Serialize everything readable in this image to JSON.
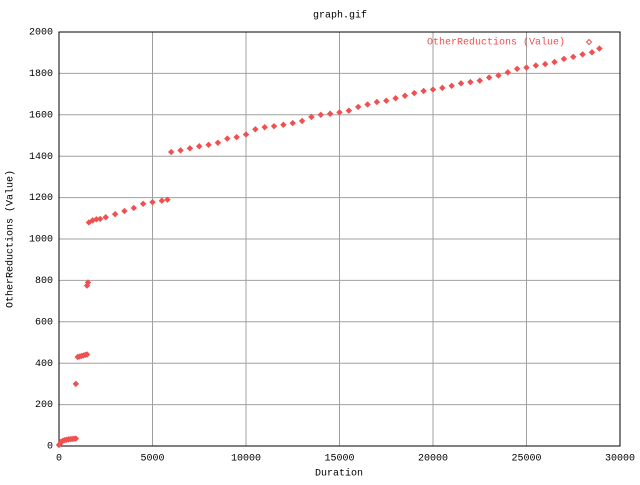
{
  "chart_data": {
    "type": "scatter",
    "title": "graph.gif",
    "x_label": "Duration",
    "y_label": "OtherReductions (Value)",
    "xlim": [
      0,
      30000
    ],
    "xticks": [
      0,
      5000,
      10000,
      15000,
      20000,
      25000,
      30000
    ],
    "ylim": [
      0,
      2000
    ],
    "yticks": [
      0,
      200,
      400,
      600,
      800,
      1000,
      1200,
      1400,
      1600,
      1800,
      2000
    ],
    "grid": true,
    "legend": "top-right",
    "x": [
      0,
      50,
      100,
      200,
      300,
      400,
      500,
      600,
      700,
      800,
      900,
      900,
      1000,
      1100,
      1200,
      1300,
      1400,
      1500,
      1500,
      1550,
      1600,
      1800,
      2000,
      2200,
      2500,
      3000,
      3500,
      4000,
      4500,
      5000,
      5500,
      5800,
      6000,
      6500,
      7000,
      7500,
      8000,
      8500,
      9000,
      9500,
      10000,
      10500,
      11000,
      11500,
      12000,
      12500,
      13000,
      13500,
      14000,
      14500,
      15000,
      15500,
      16000,
      16500,
      17000,
      17500,
      18000,
      18500,
      19000,
      19500,
      20000,
      20500,
      21000,
      21500,
      22000,
      22500,
      23000,
      23500,
      24000,
      24500,
      25000,
      25500,
      26000,
      26500,
      27000,
      27500,
      28000,
      28500,
      28900
    ],
    "series": [
      {
        "name": "OtherReductions (Value)",
        "color": "#f05050",
        "values": [
          5,
          10,
          20,
          25,
          28,
          30,
          32,
          33,
          34,
          35,
          36,
          300,
          430,
          432,
          435,
          437,
          440,
          442,
          775,
          790,
          1080,
          1090,
          1095,
          1097,
          1105,
          1120,
          1135,
          1150,
          1170,
          1178,
          1185,
          1190,
          1420,
          1428,
          1438,
          1448,
          1455,
          1465,
          1485,
          1492,
          1505,
          1530,
          1540,
          1545,
          1552,
          1560,
          1570,
          1590,
          1600,
          1605,
          1612,
          1620,
          1638,
          1650,
          1662,
          1668,
          1680,
          1692,
          1705,
          1715,
          1722,
          1730,
          1740,
          1752,
          1758,
          1765,
          1780,
          1790,
          1805,
          1822,
          1828,
          1838,
          1845,
          1855,
          1870,
          1880,
          1892,
          1902,
          1920
        ]
      }
    ]
  }
}
